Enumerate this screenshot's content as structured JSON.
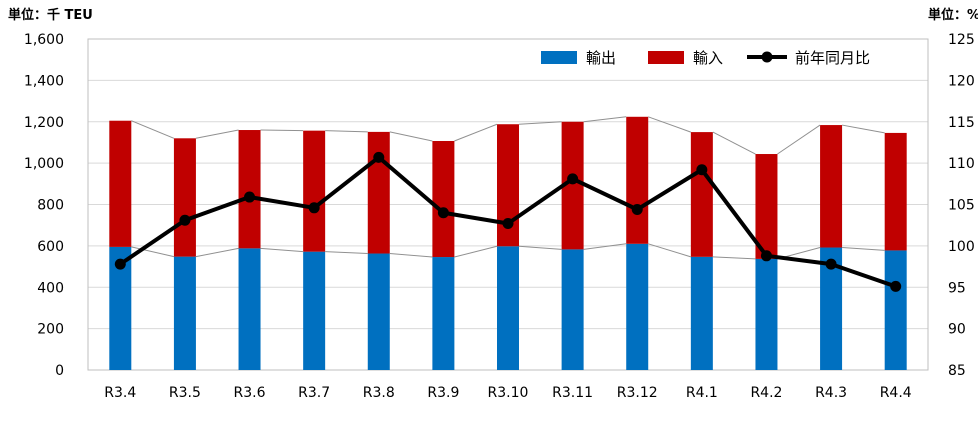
{
  "chart_data": {
    "type": "bar",
    "stacked": true,
    "categories": [
      "R3.4",
      "R3.5",
      "R3.6",
      "R3.7",
      "R3.8",
      "R3.9",
      "R3.10",
      "R3.11",
      "R3.12",
      "R4.1",
      "R4.2",
      "R4.3",
      "R4.4"
    ],
    "series": [
      {
        "name": "輸出",
        "type": "bar",
        "axis": "left",
        "color": "#0070C0",
        "values": [
          595,
          548,
          588,
          572,
          563,
          546,
          598,
          583,
          610,
          547,
          537,
          592,
          578
        ]
      },
      {
        "name": "輸入",
        "type": "bar",
        "axis": "left",
        "color": "#C00000",
        "values": [
          610,
          572,
          572,
          585,
          588,
          561,
          590,
          617,
          614,
          603,
          507,
          592,
          568
        ]
      },
      {
        "name": "前年同月比",
        "type": "line",
        "axis": "right",
        "color": "#000000",
        "values": [
          97.8,
          103.1,
          105.9,
          104.6,
          110.7,
          104.0,
          102.7,
          108.1,
          104.4,
          109.2,
          98.8,
          97.8,
          95.1
        ]
      }
    ],
    "y_left": {
      "unit_label": "単位：千 TEU",
      "min": 0,
      "max": 1600,
      "step": 200,
      "ticks": [
        "0",
        "200",
        "400",
        "600",
        "800",
        "1,000",
        "1,200",
        "1,400",
        "1,600"
      ]
    },
    "y_right": {
      "unit_label": "単位：%",
      "min": 85,
      "max": 125,
      "step": 5,
      "ticks": [
        "85",
        "90",
        "95",
        "100",
        "105",
        "110",
        "115",
        "120",
        "125"
      ]
    },
    "grid": true,
    "legend": {
      "placement": "top-right",
      "items": [
        {
          "label": "輸出",
          "color": "#0070C0",
          "kind": "bar"
        },
        {
          "label": "輸入",
          "color": "#C00000",
          "kind": "bar"
        },
        {
          "label": "前年同月比",
          "color": "#000000",
          "kind": "line"
        }
      ]
    },
    "colors": {
      "export": "#0070C0",
      "import": "#C00000",
      "line": "#000000",
      "connector": "#909090",
      "grid": "#d9d9d9",
      "frame": "#bfbfbf"
    }
  }
}
